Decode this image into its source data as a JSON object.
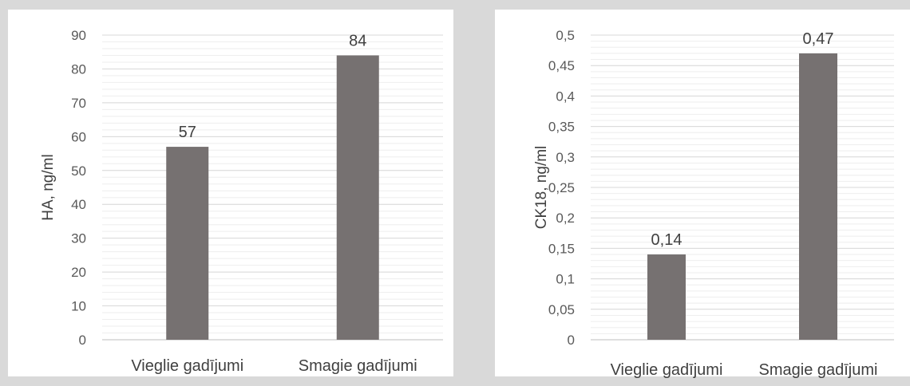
{
  "decimal_separator": ",",
  "colors": {
    "background": "#d9d9d9",
    "panel": "#ffffff",
    "bar": "#767171",
    "grid": "#d9d9d9"
  },
  "chart_data": [
    {
      "type": "bar",
      "title": "",
      "xlabel": "",
      "ylabel": "HA, ng/ml",
      "categories": [
        "Vieglie gadījumi",
        "Smagie gadījumi"
      ],
      "values": [
        57,
        84
      ],
      "data_labels": [
        "57",
        "84"
      ],
      "ylim": [
        0,
        90
      ],
      "ytick_step": 10,
      "minor_step": 2,
      "grid": true,
      "legend": "none"
    },
    {
      "type": "bar",
      "title": "",
      "xlabel": "",
      "ylabel": "CK18, ng/ml",
      "categories": [
        "Vieglie gadījumi",
        "Smagie gadījumi"
      ],
      "values": [
        0.14,
        0.47
      ],
      "data_labels": [
        "0,14",
        "0,47"
      ],
      "ylim": [
        0,
        0.5
      ],
      "ytick_step": 0.05,
      "minor_step": 0.01,
      "grid": true,
      "legend": "none"
    }
  ]
}
